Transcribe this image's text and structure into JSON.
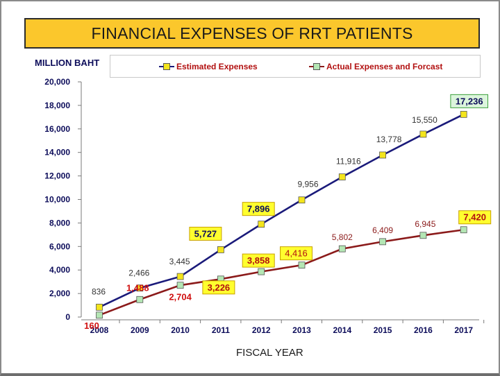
{
  "title": "FINANCIAL EXPENSES OF RRT PATIENTS",
  "chart_data": {
    "type": "line",
    "title": "FINANCIAL EXPENSES OF RRT PATIENTS",
    "ylabel": "MILLION BAHT",
    "xlabel": "FISCAL YEAR",
    "ylim": [
      0,
      20000
    ],
    "yticks": [
      "0",
      "2,000",
      "4,000",
      "6,000",
      "8,000",
      "10,000",
      "12,000",
      "14,000",
      "16,000",
      "18,000",
      "20,000"
    ],
    "categories": [
      "2008",
      "2009",
      "2010",
      "2011",
      "2012",
      "2013",
      "2014",
      "2015",
      "2016",
      "2017"
    ],
    "legend_position": "top",
    "series": [
      {
        "name": "Estimated Expenses",
        "color": "#1a1a7a",
        "marker_color": "#f4e51c",
        "values": [
          836,
          2466,
          3445,
          5727,
          7896,
          9956,
          11916,
          13778,
          15550,
          17236
        ],
        "labels": [
          "836",
          "2,466",
          "3,445",
          "5,727",
          "7,896",
          "9,956",
          "11,916",
          "13,778",
          "15,550",
          "17,236"
        ]
      },
      {
        "name": "Actual Expenses and Forcast",
        "color": "#8b1a1a",
        "marker_color": "#b4e6b4",
        "values": [
          160,
          1488,
          2704,
          3226,
          3858,
          4416,
          5802,
          6409,
          6945,
          7420
        ],
        "labels": [
          "160",
          "1,488",
          "2,704",
          "3,226",
          "3,858",
          "4,416",
          "5,802",
          "6,409",
          "6,945",
          "7,420"
        ]
      }
    ]
  }
}
